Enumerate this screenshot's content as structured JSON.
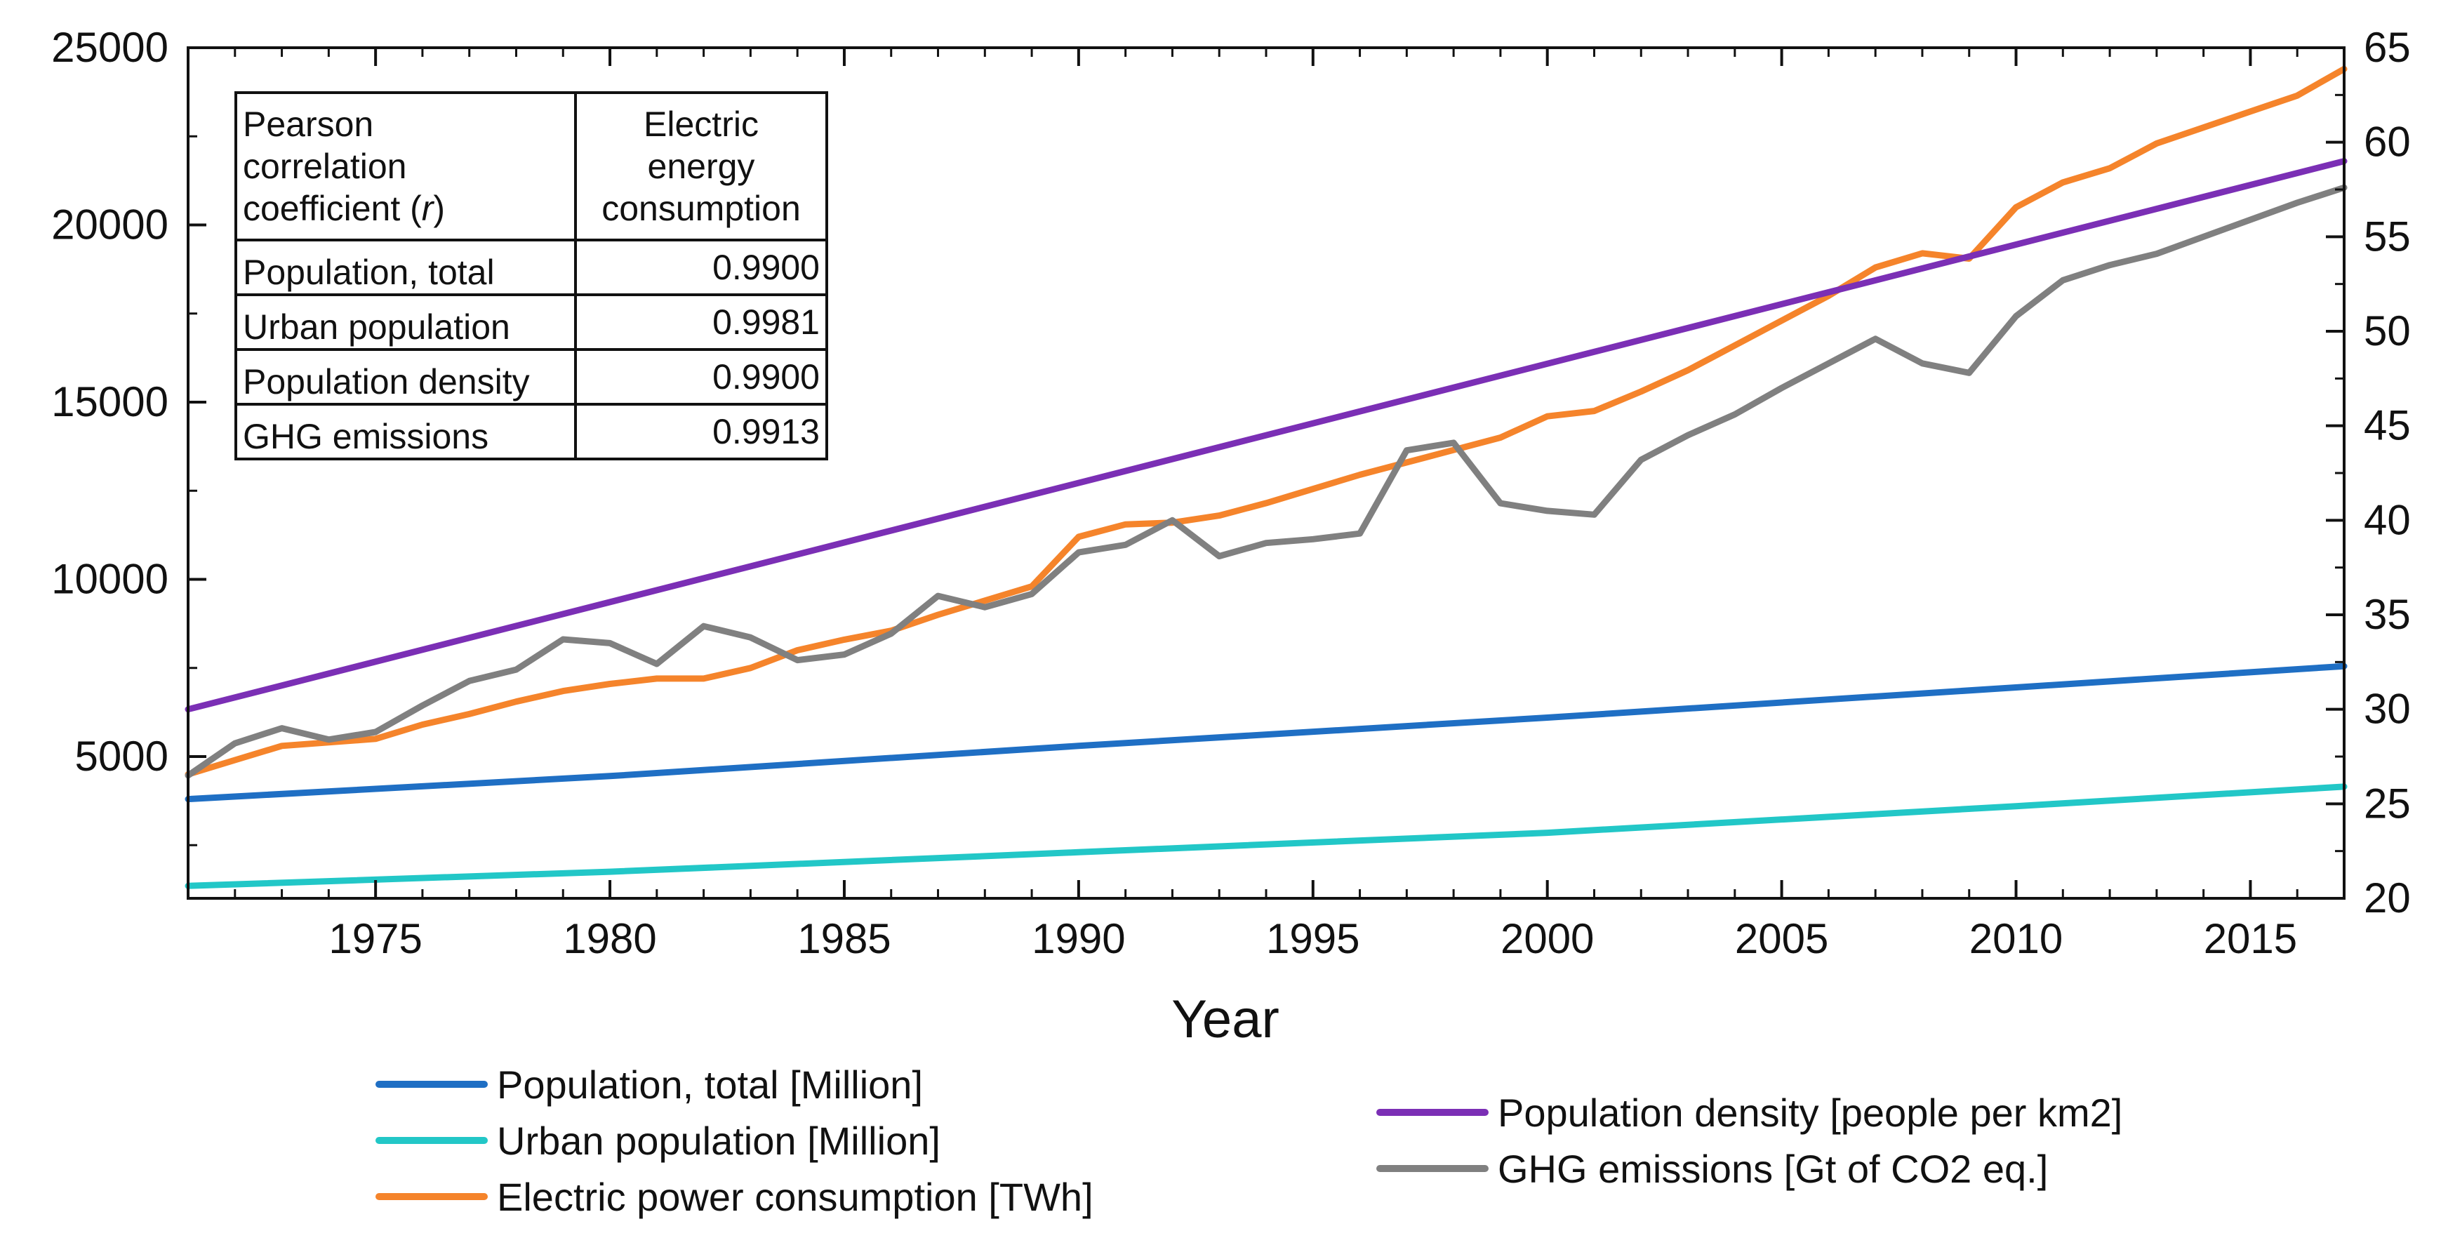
{
  "chart_data": {
    "type": "line",
    "title": "",
    "xlabel": "Year",
    "ylabel_left": "",
    "ylabel_right": "",
    "xlim": [
      1971,
      2017
    ],
    "ylim_left": [
      1000,
      25000
    ],
    "ylim_right": [
      20,
      65
    ],
    "x_ticks": [
      1975,
      1980,
      1985,
      1990,
      1995,
      2000,
      2005,
      2010,
      2015
    ],
    "y_ticks_left": [
      5000,
      10000,
      15000,
      20000,
      25000
    ],
    "y_ticks_right": [
      20,
      25,
      30,
      35,
      40,
      45,
      50,
      55,
      60,
      65
    ],
    "series": [
      {
        "name": "Population, total [Million]",
        "color": "#1f6fc4",
        "axis": "left",
        "x": [
          1971,
          1980,
          1990,
          2000,
          2010,
          2017
        ],
        "values": [
          3800,
          4450,
          5300,
          6100,
          6950,
          7550
        ]
      },
      {
        "name": "Urban population [Million]",
        "color": "#22c7c7",
        "axis": "left",
        "x": [
          1971,
          1980,
          1990,
          2000,
          2010,
          2017
        ],
        "values": [
          1350,
          1750,
          2300,
          2850,
          3600,
          4150
        ]
      },
      {
        "name": "Electric power consumption [TWh]",
        "color": "#f5842b",
        "axis": "left",
        "x": [
          1971,
          1972,
          1973,
          1974,
          1975,
          1976,
          1977,
          1978,
          1979,
          1980,
          1981,
          1982,
          1983,
          1984,
          1985,
          1986,
          1987,
          1988,
          1989,
          1990,
          1991,
          1992,
          1993,
          1994,
          1995,
          1996,
          1997,
          1998,
          1999,
          2000,
          2001,
          2002,
          2003,
          2004,
          2005,
          2006,
          2007,
          2008,
          2009,
          2010,
          2011,
          2012,
          2013,
          2014,
          2015,
          2016,
          2017
        ],
        "values": [
          4500,
          4900,
          5300,
          5400,
          5500,
          5900,
          6200,
          6550,
          6850,
          7050,
          7200,
          7200,
          7500,
          8000,
          8300,
          8550,
          9000,
          9400,
          9800,
          11200,
          11550,
          11600,
          11800,
          12150,
          12550,
          12950,
          13300,
          13650,
          14000,
          14600,
          14750,
          15300,
          15900,
          16600,
          17300,
          18000,
          18800,
          19200,
          19050,
          20500,
          21200,
          21600,
          22300,
          22750,
          23200,
          23650,
          24400
        ]
      },
      {
        "name": "Population density [people per km2]",
        "color": "#7b2fb5",
        "axis": "right",
        "x": [
          1971,
          2017
        ],
        "values": [
          30,
          59
        ]
      },
      {
        "name": "GHG emissions [Gt of CO2 eq.]",
        "color": "#808080",
        "axis": "right",
        "x": [
          1971,
          1972,
          1973,
          1974,
          1975,
          1976,
          1977,
          1978,
          1979,
          1980,
          1981,
          1982,
          1983,
          1984,
          1985,
          1986,
          1987,
          1988,
          1989,
          1990,
          1991,
          1992,
          1993,
          1994,
          1995,
          1996,
          1997,
          1998,
          1999,
          2000,
          2001,
          2002,
          2003,
          2004,
          2005,
          2006,
          2007,
          2008,
          2009,
          2010,
          2011,
          2012,
          2013,
          2014,
          2015,
          2016,
          2017
        ],
        "values": [
          26.5,
          28.2,
          29,
          28.4,
          28.8,
          30.2,
          31.5,
          32.1,
          33.7,
          33.5,
          32.4,
          34.4,
          33.8,
          32.6,
          32.9,
          34,
          36,
          35.4,
          36.1,
          38.3,
          38.7,
          40,
          38.1,
          38.8,
          39,
          39.3,
          43.7,
          44.1,
          40.9,
          40.5,
          40.3,
          43.2,
          44.5,
          45.6,
          47,
          48.3,
          49.6,
          48.3,
          47.8,
          50.8,
          52.7,
          53.5,
          54.1,
          55,
          55.9,
          56.8,
          57.6
        ]
      }
    ],
    "legend": {
      "placement": "bottom",
      "left_column": [
        "Population, total [Million]",
        "Urban population [Million]",
        "Electric power consumption [TWh]"
      ],
      "right_column": [
        "Population density [people per km2]",
        "GHG emissions [Gt of CO2 eq.]"
      ]
    },
    "inset_table": {
      "header": [
        "Pearson correlation coefficient (r)",
        "Electric energy consumption"
      ],
      "rows": [
        [
          "Population, total",
          "0.9900"
        ],
        [
          "Urban population",
          "0.9981"
        ],
        [
          "Population density",
          "0.9900"
        ],
        [
          "GHG emissions",
          "0.9913"
        ]
      ]
    }
  },
  "table": {
    "header_left_lines": [
      "Pearson",
      "correlation",
      "coefficient ("
    ],
    "header_italic_r": "r",
    "header_close": ")",
    "header_right_lines": [
      "Electric",
      "energy",
      "consumption"
    ],
    "rows": [
      {
        "label": "Population, total",
        "value": "0.9900"
      },
      {
        "label": "Urban population",
        "value": "0.9981"
      },
      {
        "label": "Population density",
        "value": "0.9900"
      },
      {
        "label": "GHG emissions",
        "value": "0.9913"
      }
    ]
  }
}
